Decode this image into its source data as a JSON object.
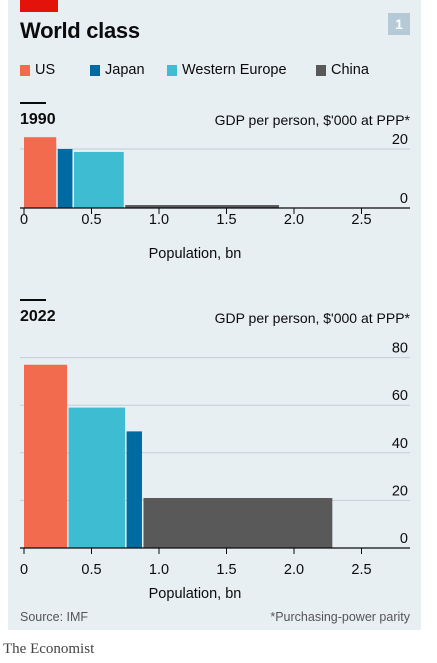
{
  "header": {
    "title": "World class",
    "badge": "1"
  },
  "legend": [
    {
      "label": "US",
      "color": "#f26b4f"
    },
    {
      "label": "Japan",
      "color": "#006ba2"
    },
    {
      "label": "Western Europe",
      "color": "#3ebcd2"
    },
    {
      "label": "China",
      "color": "#595959"
    }
  ],
  "footer": {
    "source": "Source: IMF",
    "note": "*Purchasing-power parity",
    "brand": "The Economist"
  },
  "chart_data": [
    {
      "type": "bar",
      "subtype": "variable-width",
      "title": "1990",
      "ylabel": "GDP per person, $'000 at PPP*",
      "xlabel": "Population, bn",
      "xlim": [
        0,
        2.75
      ],
      "ylim": [
        0,
        23
      ],
      "xticks": [
        0,
        0.5,
        1.0,
        1.5,
        2.0,
        2.5
      ],
      "xtick_labels": [
        "0",
        "0.5",
        "1.0",
        "1.5",
        "2.0",
        "2.5"
      ],
      "yticks": [
        0,
        20
      ],
      "ytick_labels": [
        "0",
        "20"
      ],
      "grid": true,
      "series": [
        {
          "name": "US",
          "population_bn": 0.25,
          "gdp_per_person": 24
        },
        {
          "name": "Japan",
          "population_bn": 0.12,
          "gdp_per_person": 20
        },
        {
          "name": "Western Europe",
          "population_bn": 0.38,
          "gdp_per_person": 19
        },
        {
          "name": "China",
          "population_bn": 1.15,
          "gdp_per_person": 1
        }
      ]
    },
    {
      "type": "bar",
      "subtype": "variable-width",
      "title": "2022",
      "ylabel": "GDP per person, $'000 at PPP*",
      "xlabel": "Population, bn",
      "xlim": [
        0,
        2.75
      ],
      "ylim": [
        0,
        85
      ],
      "xticks": [
        0,
        0.5,
        1.0,
        1.5,
        2.0,
        2.5
      ],
      "xtick_labels": [
        "0",
        "0.5",
        "1.0",
        "1.5",
        "2.0",
        "2.5"
      ],
      "yticks": [
        0,
        20,
        40,
        60,
        80
      ],
      "ytick_labels": [
        "0",
        "20",
        "40",
        "60",
        "80"
      ],
      "grid": true,
      "series": [
        {
          "name": "US",
          "population_bn": 0.33,
          "gdp_per_person": 77
        },
        {
          "name": "Western Europe",
          "population_bn": 0.43,
          "gdp_per_person": 59
        },
        {
          "name": "Japan",
          "population_bn": 0.125,
          "gdp_per_person": 49
        },
        {
          "name": "China",
          "population_bn": 1.41,
          "gdp_per_person": 21
        }
      ]
    }
  ]
}
